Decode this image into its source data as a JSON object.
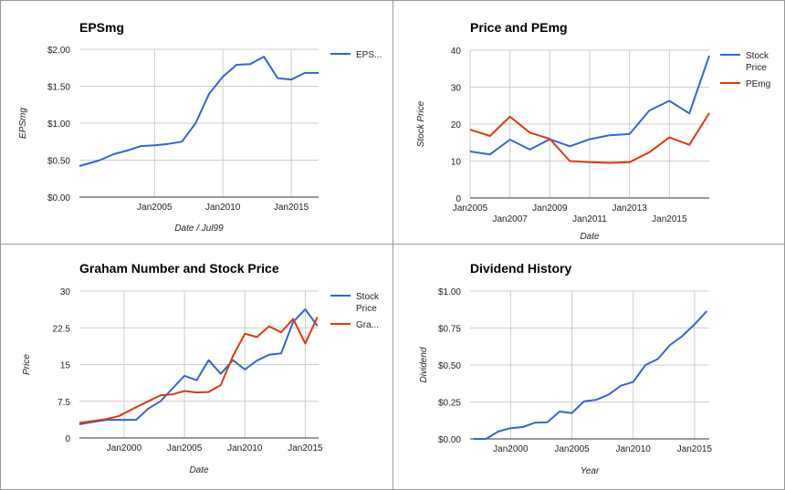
{
  "colors": {
    "blue": "#3366cc",
    "red": "#dc3912",
    "grid": "#cccccc",
    "baseline": "#333333"
  },
  "chart_data": [
    {
      "type": "line",
      "title": "EPSmg",
      "xlabel": "Date / Jul99",
      "ylabel": "EPSmg",
      "xlim": [
        1999.5,
        2017.0
      ],
      "ylim": [
        0,
        2
      ],
      "yticks": [
        0,
        0.5,
        1,
        1.5,
        2
      ],
      "ytick_labels": [
        "$0.00",
        "$0.50",
        "$1.00",
        "$1.50",
        "$2.00"
      ],
      "xticks": [
        {
          "v": 2005,
          "label": "Jan2005",
          "row": 0
        },
        {
          "v": 2010,
          "label": "Jan2010",
          "row": 0
        },
        {
          "v": 2015,
          "label": "Jan2015",
          "row": 0
        }
      ],
      "legend": "right",
      "series": [
        {
          "name": "EPS...",
          "color": "blue",
          "x": [
            1999.5,
            2001,
            2002,
            2003,
            2004,
            2005,
            2006,
            2007,
            2008,
            2009,
            2010,
            2011,
            2012,
            2013,
            2014,
            2015,
            2016,
            2017
          ],
          "y": [
            0.42,
            0.5,
            0.58,
            0.63,
            0.69,
            0.7,
            0.72,
            0.75,
            1.0,
            1.4,
            1.63,
            1.79,
            1.8,
            1.9,
            1.61,
            1.59,
            1.68,
            1.68
          ]
        }
      ]
    },
    {
      "type": "line",
      "title": "Price and PEmg",
      "xlabel": "Date",
      "ylabel": "Stock Price",
      "xlim": [
        2005.0,
        2017.0
      ],
      "ylim": [
        0,
        40
      ],
      "yticks": [
        0,
        10,
        20,
        30,
        40
      ],
      "ytick_labels": [
        "0",
        "10",
        "20",
        "30",
        "40"
      ],
      "xticks": [
        {
          "v": 2005,
          "label": "Jan2005",
          "row": 0
        },
        {
          "v": 2007,
          "label": "Jan2007",
          "row": 1
        },
        {
          "v": 2009,
          "label": "Jan2009",
          "row": 0
        },
        {
          "v": 2011,
          "label": "Jan2011",
          "row": 1
        },
        {
          "v": 2013,
          "label": "Jan2013",
          "row": 0
        },
        {
          "v": 2015,
          "label": "Jan2015",
          "row": 1
        }
      ],
      "legend": "right",
      "series": [
        {
          "name": "Stock Price",
          "color": "blue",
          "x": [
            2005,
            2006,
            2007,
            2008,
            2009,
            2010,
            2011,
            2012,
            2013,
            2014,
            2015,
            2016,
            2017
          ],
          "y": [
            12.6,
            11.8,
            15.8,
            13.1,
            15.9,
            14.0,
            15.9,
            17.0,
            17.3,
            23.7,
            26.3,
            22.9,
            38.5
          ]
        },
        {
          "name": "PEmg",
          "color": "red",
          "x": [
            2005,
            2006,
            2007,
            2008,
            2009,
            2010,
            2011,
            2012,
            2013,
            2014,
            2015,
            2016,
            2017
          ],
          "y": [
            18.5,
            16.8,
            22.0,
            17.7,
            16.0,
            10.0,
            9.7,
            9.5,
            9.7,
            12.4,
            16.4,
            14.4,
            23.0
          ]
        }
      ]
    },
    {
      "type": "line",
      "title": "Graham Number and Stock Price",
      "xlabel": "Date",
      "ylabel": "Price",
      "xlim": [
        1996.3,
        2016.1
      ],
      "ylim": [
        0,
        30
      ],
      "yticks": [
        0,
        7.5,
        15,
        22.5,
        30
      ],
      "ytick_labels": [
        "0",
        "7.5",
        "15",
        "22.5",
        "30"
      ],
      "xticks": [
        {
          "v": 2000,
          "label": "Jan2000",
          "row": 0
        },
        {
          "v": 2005,
          "label": "Jan2005",
          "row": 0
        },
        {
          "v": 2010,
          "label": "Jan2010",
          "row": 0
        },
        {
          "v": 2015,
          "label": "Jan2015",
          "row": 0
        }
      ],
      "legend": "right",
      "series": [
        {
          "name": "Stock Price",
          "color": "blue",
          "x": [
            1996.3,
            1997.5,
            1998.6,
            1999.6,
            2001,
            2002,
            2003,
            2004,
            2005,
            2006,
            2007,
            2008,
            2009,
            2010,
            2011,
            2012,
            2013,
            2014,
            2015,
            2016
          ],
          "y": [
            2.8,
            3.3,
            3.7,
            3.7,
            3.7,
            6.0,
            7.5,
            10.1,
            12.7,
            11.8,
            15.9,
            13.1,
            15.9,
            14.0,
            15.8,
            17.0,
            17.3,
            23.7,
            26.3,
            22.9
          ]
        },
        {
          "name": "Gra...",
          "color": "red",
          "x": [
            1996.3,
            1997.5,
            1998.6,
            1999.6,
            2001,
            2002,
            2003,
            2004,
            2005,
            2006,
            2007,
            2008,
            2009,
            2010,
            2011,
            2012,
            2013,
            2014,
            2015,
            2016
          ],
          "y": [
            3.1,
            3.5,
            3.9,
            4.5,
            6.3,
            7.5,
            8.7,
            8.9,
            9.6,
            9.3,
            9.4,
            10.8,
            16.7,
            21.3,
            20.6,
            22.8,
            21.6,
            24.3,
            19.3,
            24.7
          ]
        }
      ]
    },
    {
      "type": "line",
      "title": "Dividend History",
      "xlabel": "Year",
      "ylabel": "Dividend",
      "xlim": [
        1996.7,
        2016.2
      ],
      "ylim": [
        0,
        1
      ],
      "yticks": [
        0,
        0.25,
        0.5,
        0.75,
        1
      ],
      "ytick_labels": [
        "$0.00",
        "$0.25",
        "$0.50",
        "$0.75",
        "$1.00"
      ],
      "xticks": [
        {
          "v": 2000,
          "label": "Jan2000",
          "row": 0
        },
        {
          "v": 2005,
          "label": "Jan2005",
          "row": 0
        },
        {
          "v": 2010,
          "label": "Jan2010",
          "row": 0
        },
        {
          "v": 2015,
          "label": "Jan2015",
          "row": 0
        }
      ],
      "legend": "none",
      "series": [
        {
          "name": "",
          "color": "blue",
          "x": [
            1997,
            1998,
            1999,
            2000,
            2001,
            2002,
            2003,
            2004,
            2005,
            2006,
            2007,
            2008,
            2009,
            2010,
            2011,
            2012,
            2013,
            2014,
            2015,
            2016
          ],
          "y": [
            0.0,
            0.0,
            0.05,
            0.073,
            0.08,
            0.11,
            0.113,
            0.185,
            0.175,
            0.255,
            0.265,
            0.3,
            0.36,
            0.385,
            0.5,
            0.54,
            0.635,
            0.695,
            0.775,
            0.865
          ]
        }
      ]
    }
  ]
}
